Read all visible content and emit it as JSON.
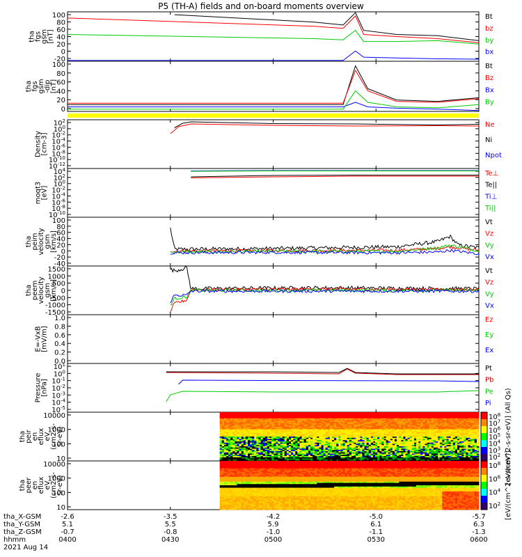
{
  "title": "P5 (TH-A) fields and on-board moments overview",
  "chart_data": {
    "type": "line",
    "title": "P5 (TH-A) fields and on-board moments overview",
    "x_axis": {
      "time_ticks": [
        "0400",
        "0430",
        "0500",
        "0530",
        "0600"
      ],
      "time_range": [
        "0400",
        "0600"
      ],
      "ephemeris": [
        {
          "label": "tha_X-GSM",
          "values": [
            "-2.6",
            "-3.5",
            "-4.2",
            "-5.0",
            "-5.7"
          ]
        },
        {
          "label": "tha_Y-GSM",
          "values": [
            "5.1",
            "5.5",
            "5.9",
            "6.1",
            "6.3"
          ]
        },
        {
          "label": "tha_Z-GSM",
          "values": [
            "-0.7",
            "-0.8",
            "-1.0",
            "-1.1",
            "-1.3"
          ]
        },
        {
          "label": "hhmm",
          "values": [
            "0400",
            "0430",
            "0500",
            "0530",
            "0600"
          ]
        }
      ],
      "date": "2021 Aug 14"
    },
    "panels": [
      {
        "id": "fgs",
        "ylabel": [
          "tha",
          "fgs",
          "gsm",
          "[nT]"
        ],
        "yticks": [
          "100",
          "80",
          "60",
          "40",
          "20",
          "0",
          "-20"
        ],
        "ylim": [
          -20,
          100
        ],
        "series": [
          {
            "name": "Bt",
            "color": "#000000",
            "x": [
              0.26,
              0.6,
              0.67,
              0.7,
              0.72,
              0.8,
              0.9,
              1.0
            ],
            "y": [
              93,
              75,
              68,
              98,
              55,
              45,
              42,
              30
            ]
          },
          {
            "name": "bz",
            "color": "#ff0000",
            "x": [
              0.0,
              0.6,
              0.67,
              0.7,
              0.72,
              0.8,
              0.9,
              1.0
            ],
            "y": [
              85,
              65,
              60,
              90,
              45,
              40,
              35,
              25
            ]
          },
          {
            "name": "by",
            "color": "#00cc00",
            "x": [
              0.0,
              0.6,
              0.67,
              0.7,
              0.72,
              0.8,
              0.9,
              1.0
            ],
            "y": [
              45,
              35,
              32,
              55,
              28,
              28,
              30,
              22
            ]
          },
          {
            "name": "bx",
            "color": "#0000ff",
            "x": [
              0.0,
              0.6,
              0.67,
              0.7,
              0.72,
              0.8,
              0.9,
              1.0
            ],
            "y": [
              -18,
              -18,
              -18,
              5,
              -10,
              -12,
              -14,
              -15
            ]
          }
        ]
      },
      {
        "id": "fgs-dip",
        "ylabel": [
          "tha",
          "fgs",
          "gsm",
          "-dip",
          "[nT]"
        ],
        "yticks": [
          "100",
          "80",
          "60",
          "40",
          "20",
          "0"
        ],
        "ylim": [
          -10,
          100
        ],
        "series": [
          {
            "name": "Bt",
            "color": "#000000",
            "x": [
              0.0,
              0.6,
              0.67,
              0.7,
              0.73,
              0.8,
              0.9,
              1.0
            ],
            "y": [
              5,
              5,
              5,
              90,
              40,
              15,
              12,
              20
            ]
          },
          {
            "name": "Bz",
            "color": "#ff0000",
            "x": [
              0.0,
              0.6,
              0.67,
              0.7,
              0.73,
              0.8,
              0.9,
              1.0
            ],
            "y": [
              8,
              8,
              8,
              80,
              35,
              12,
              10,
              18
            ]
          },
          {
            "name": "Bx",
            "color": "#0000ff",
            "x": [
              0.0,
              0.6,
              0.67,
              0.7,
              0.73,
              0.8,
              0.9,
              1.0
            ],
            "y": [
              0,
              0,
              0,
              10,
              0,
              -3,
              -5,
              -8
            ]
          },
          {
            "name": "By",
            "color": "#00cc00",
            "x": [
              0.0,
              0.6,
              0.67,
              0.7,
              0.73,
              0.8,
              0.9,
              1.0
            ],
            "y": [
              -5,
              -5,
              -5,
              35,
              10,
              0,
              -2,
              5
            ]
          }
        ]
      },
      {
        "id": "density",
        "ylabel": [
          "Density",
          "[cm-3]"
        ],
        "yticks": [
          "10^2",
          "10^0",
          "10^-2",
          "10^-4",
          "10^-6",
          "10^-8",
          "10^-10",
          "10^-12"
        ],
        "ylim_log10": [
          -12,
          2
        ],
        "series": [
          {
            "name": "Ne",
            "color": "#ff0000",
            "x": [
              0.25,
              0.27,
              0.3,
              0.5,
              0.7,
              0.9,
              1.0
            ],
            "log10y": [
              -2,
              0,
              0.8,
              0.4,
              0.2,
              0.3,
              0.2
            ]
          },
          {
            "name": "Ni",
            "color": "#000000",
            "x": [
              0.26,
              0.28,
              0.3,
              0.5,
              0.7,
              0.9,
              1.0
            ],
            "log10y": [
              -0.3,
              1,
              1.4,
              0.9,
              0.8,
              0.5,
              0.7
            ]
          },
          {
            "name": "Npot",
            "color": "#0000ff",
            "x": [],
            "log10y": []
          }
        ]
      },
      {
        "id": "moqt3",
        "ylabel": [
          "moqt3",
          "[eV]"
        ],
        "yticks": [
          "10^4",
          "10^2",
          "10^0",
          "10^-2",
          "10^-4",
          "10^-6",
          "10^-8",
          "10^-10"
        ],
        "ylim_log10": [
          -10,
          4
        ],
        "series": [
          {
            "name": "Te⊥",
            "color": "#ff0000",
            "x": [
              0.3,
              0.5,
              0.7,
              1.0
            ],
            "log10y": [
              1.3,
              1.6,
              1.8,
              1.8
            ]
          },
          {
            "name": "Te||",
            "color": "#000000",
            "x": [
              0.3,
              0.5,
              0.7,
              1.0
            ],
            "log10y": [
              1.6,
              2.0,
              2.1,
              2.1
            ]
          },
          {
            "name": "Ti⊥",
            "color": "#0000ff",
            "x": [
              0.3,
              0.5,
              0.7,
              1.0
            ],
            "log10y": [
              3.3,
              3.4,
              3.4,
              3.4
            ]
          },
          {
            "name": "Ti||",
            "color": "#00cc00",
            "x": [
              0.3,
              0.5,
              0.7,
              1.0
            ],
            "log10y": [
              3.2,
              3.3,
              3.3,
              3.3
            ]
          }
        ]
      },
      {
        "id": "peim",
        "ylabel": [
          "tha",
          "peim",
          "velocity",
          "gsm",
          "[km/s]"
        ],
        "yticks": [
          "100",
          "80",
          "60",
          "40",
          "20",
          "0",
          "-20",
          "-40"
        ],
        "ylim": [
          -40,
          100
        ],
        "noisy": true,
        "series": [
          {
            "name": "Vt",
            "color": "#000000",
            "x": [
              0.25,
              0.26,
              0.5,
              0.8,
              0.9,
              0.93,
              0.95,
              1.0
            ],
            "y": [
              68,
              8,
              10,
              15,
              30,
              45,
              20,
              12
            ]
          },
          {
            "name": "Vz",
            "color": "#ff0000",
            "x": [
              0.25,
              0.5,
              0.8,
              0.9,
              0.93,
              1.0
            ],
            "y": [
              3,
              4,
              5,
              10,
              15,
              5
            ]
          },
          {
            "name": "Vy",
            "color": "#00cc00",
            "x": [
              0.25,
              0.5,
              0.8,
              0.9,
              0.93,
              1.0
            ],
            "y": [
              0,
              2,
              2,
              12,
              20,
              3
            ]
          },
          {
            "name": "Vx",
            "color": "#0000ff",
            "x": [
              0.25,
              0.5,
              0.8,
              0.9,
              0.93,
              1.0
            ],
            "y": [
              -2,
              -1,
              -2,
              0,
              5,
              -5
            ]
          }
        ]
      },
      {
        "id": "peem",
        "ylabel": [
          "tha",
          "peem",
          "velocity",
          "gsm",
          "[km/s]"
        ],
        "yticks": [
          "1500",
          "1000",
          "500",
          "0",
          "-500",
          "-1000",
          "-1500"
        ],
        "ylim": [
          -1500,
          1500
        ],
        "noisy": true,
        "series": [
          {
            "name": "Vt",
            "color": "#000000",
            "x": [
              0.25,
              0.26,
              0.29,
              0.3,
              0.6,
              1.0
            ],
            "y": [
              1300,
              1200,
              1400,
              100,
              150,
              100
            ]
          },
          {
            "name": "Vz",
            "color": "#ff0000",
            "x": [
              0.25,
              0.26,
              0.29,
              0.3,
              0.6,
              1.0
            ],
            "y": [
              -1300,
              -800,
              -600,
              50,
              80,
              50
            ]
          },
          {
            "name": "Vy",
            "color": "#00cc00",
            "x": [
              0.25,
              0.26,
              0.29,
              0.3,
              0.6,
              1.0
            ],
            "y": [
              -900,
              -500,
              -400,
              0,
              0,
              0
            ]
          },
          {
            "name": "Vx",
            "color": "#0000ff",
            "x": [
              0.25,
              0.26,
              0.29,
              0.3,
              0.6,
              1.0
            ],
            "y": [
              -700,
              -300,
              -300,
              -50,
              -50,
              -50
            ]
          }
        ]
      },
      {
        "id": "efield",
        "ylabel": [
          "E=-VxB",
          "[mV/m]"
        ],
        "yticks": [
          "1.0",
          "0.8",
          "0.6",
          "0.4",
          "0.2",
          "0.0"
        ],
        "ylim": [
          0,
          1
        ],
        "series": [
          {
            "name": "Ez",
            "color": "#ff0000",
            "x": [],
            "y": []
          },
          {
            "name": "Ey",
            "color": "#00cc00",
            "x": [],
            "y": []
          },
          {
            "name": "Ex",
            "color": "#0000ff",
            "x": [],
            "y": []
          }
        ]
      },
      {
        "id": "pressure",
        "ylabel": [
          "Pressure",
          "[nPa]"
        ],
        "yticks": [
          "10^1",
          "10^0",
          "10^-1",
          "10^-2",
          "10^-3",
          "10^-4",
          "10^-5"
        ],
        "ylim_log10": [
          -5.5,
          1.5
        ],
        "series": [
          {
            "name": "Pt",
            "color": "#000000",
            "x": [
              0.24,
              0.5,
              0.66,
              0.68,
              0.7,
              0.8,
              1.0
            ],
            "log10y": [
              0.3,
              0.3,
              0.2,
              0.8,
              0.2,
              0.0,
              0.0
            ]
          },
          {
            "name": "Pb",
            "color": "#cc0000",
            "x": [
              0.24,
              0.5,
              0.66,
              0.68,
              0.7,
              0.8,
              1.0
            ],
            "log10y": [
              0.2,
              0.1,
              0.0,
              0.7,
              0.1,
              -0.1,
              -0.1
            ]
          },
          {
            "name": "Pe",
            "color": "#00cc00",
            "x": [
              0.24,
              0.25,
              0.28,
              0.5,
              0.9,
              1.0
            ],
            "log10y": [
              -4,
              -3,
              -2.5,
              -2.6,
              -2.6,
              -2.4
            ]
          },
          {
            "name": "Pi",
            "color": "#0000ff",
            "x": [
              0.27,
              0.28,
              0.5,
              0.9,
              1.0
            ],
            "log10y": [
              -1.5,
              -0.9,
              -0.95,
              -1.0,
              -1.1
            ]
          }
        ]
      },
      {
        "id": "peir",
        "type": "heatmap",
        "ylabel": [
          "tha",
          "peir",
          "en",
          "eflux",
          "eV",
          "(cm2-s-",
          "sr-eV)"
        ],
        "yticks": [
          "10000",
          "1000",
          "100",
          "10"
        ],
        "data_start_x": 0.37,
        "colorbar": {
          "label": "[eV/(cm^2-s-sr-eV)] (All Qs)",
          "ticks": [
            "10^8",
            "10^7",
            "10^6",
            "10^5",
            "10^4",
            "10^3",
            "10^2"
          ]
        }
      },
      {
        "id": "peer",
        "type": "heatmap",
        "ylabel": [
          "tha",
          "peer",
          "en",
          "eflux",
          "eV",
          "(cm2-s-",
          "sr-eV)"
        ],
        "yticks": [
          "10000",
          "1000",
          "100",
          "10"
        ],
        "data_start_x": 0.37,
        "colorbar": {
          "label": "[eV/(cm^2-s-sr-eV)]",
          "ticks": [
            "10^8",
            "10^6",
            "10^4",
            "10^2"
          ]
        }
      }
    ]
  }
}
